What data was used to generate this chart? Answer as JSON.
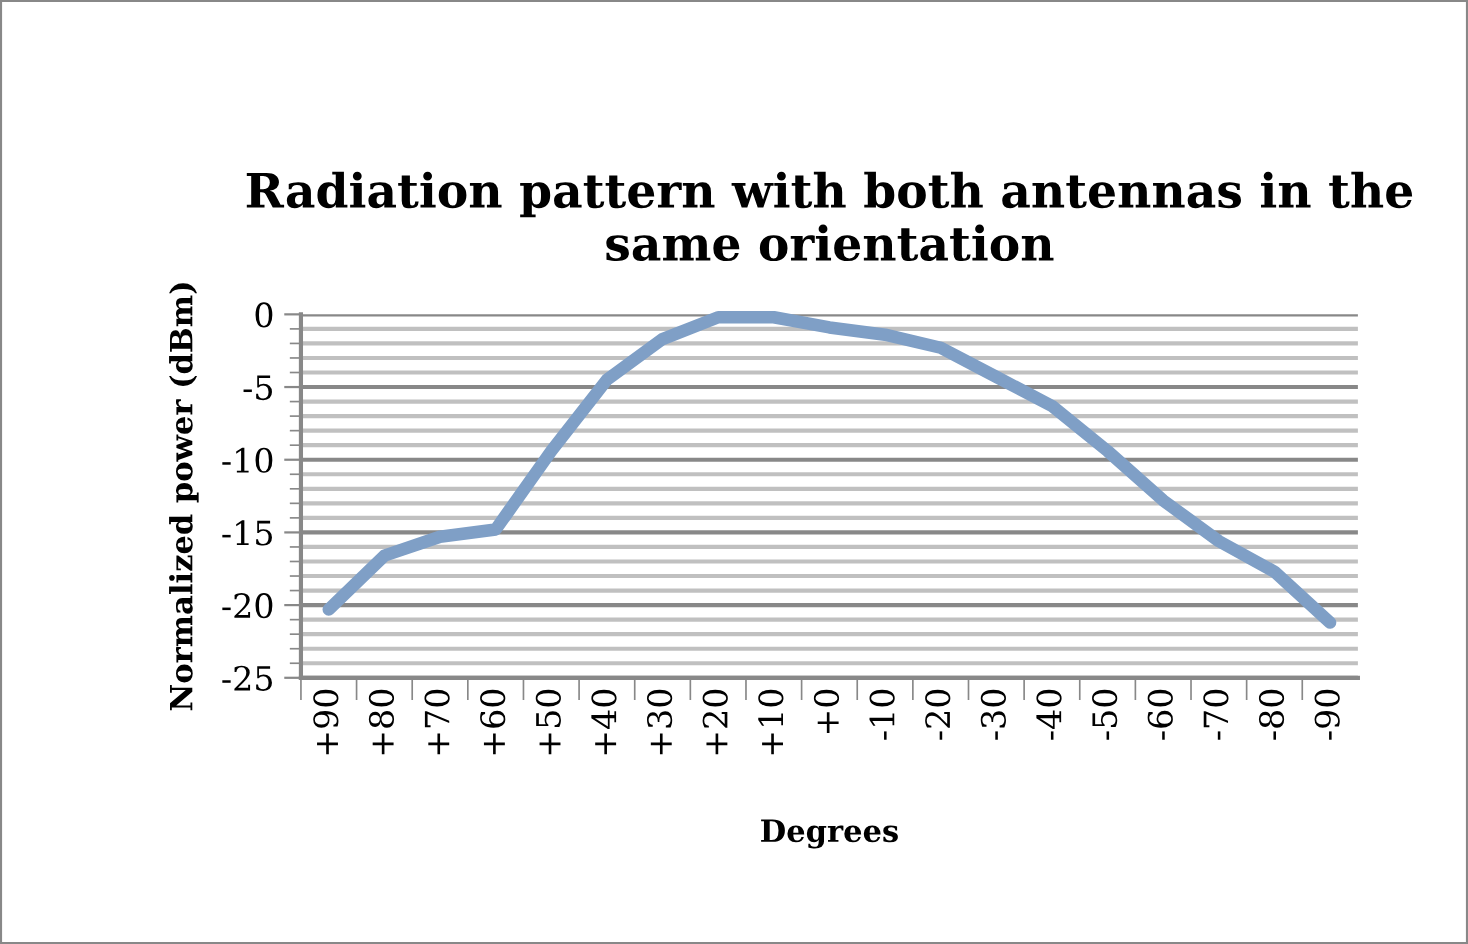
{
  "chart_data": {
    "type": "line",
    "title": "Radiation pattern with both antennas in the same orientation",
    "xlabel": "Degrees",
    "ylabel": "Normalized power (dBm)",
    "categories": [
      "+90",
      "+80",
      "+70",
      "+60",
      "+50",
      "+40",
      "+30",
      "+20",
      "+10",
      "+0",
      "-10",
      "-20",
      "-30",
      "-40",
      "-50",
      "-60",
      "-70",
      "-80",
      "-90"
    ],
    "series": [
      {
        "color": "#7f9fc6",
        "values": [
          -20.3,
          -16.6,
          -15.3,
          -14.8,
          -9.4,
          -4.5,
          -1.7,
          -0.2,
          -0.2,
          -0.9,
          -1.4,
          -2.3,
          -4.3,
          -6.3,
          -9.4,
          -12.8,
          -15.6,
          -17.7,
          -21.2
        ]
      }
    ],
    "ylim": [
      -25,
      0
    ],
    "yticks": [
      0,
      -5,
      -10,
      -15,
      -20,
      -25
    ],
    "grid": "y",
    "legend": false,
    "marker": "none",
    "line_style": "solid"
  }
}
